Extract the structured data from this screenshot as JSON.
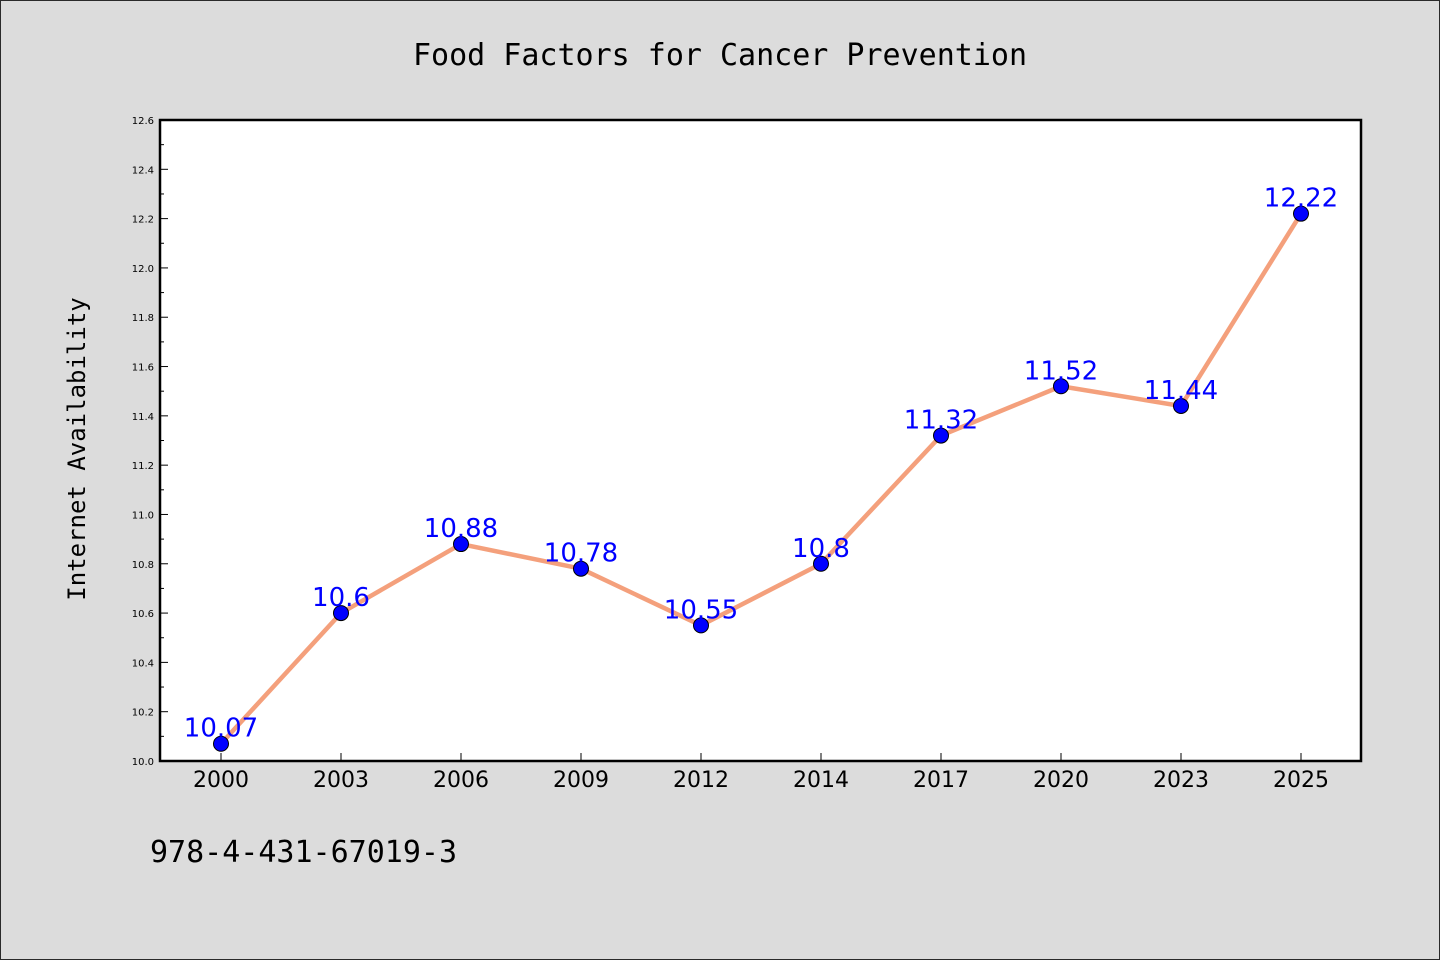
{
  "chart_data": {
    "type": "line",
    "title": "Food Factors for Cancer Prevention",
    "xlabel": "",
    "ylabel": "Internet Availability",
    "categories": [
      "2000",
      "2003",
      "2006",
      "2009",
      "2012",
      "2014",
      "2017",
      "2020",
      "2023",
      "2025"
    ],
    "series": [
      {
        "values": [
          10.07,
          10.6,
          10.88,
          10.78,
          10.55,
          10.8,
          11.32,
          11.52,
          11.44,
          12.22
        ],
        "labels": [
          "10.07",
          "10.6",
          "10.88",
          "10.78",
          "10.55",
          "10.8",
          "11.32",
          "11.52",
          "11.44",
          "12.22"
        ],
        "line_color": "#f4a07c",
        "marker_color": "#0000ff"
      }
    ],
    "ylim": [
      10.0,
      12.6
    ],
    "yticks": [
      "10.0",
      "10.2",
      "10.4",
      "10.6",
      "10.8",
      "11.0",
      "11.2",
      "11.4",
      "11.6",
      "11.8",
      "12.0",
      "12.2",
      "12.4",
      "12.6"
    ],
    "grid": false,
    "legend": "none",
    "data_labels": true
  },
  "footer": {
    "isbn": "978-4-431-67019-3"
  },
  "colors": {
    "background": "#dcdcdc",
    "plot_background": "#ffffff",
    "line": "#f4a07c",
    "marker": "#0000ff",
    "data_label": "#0000ff"
  }
}
